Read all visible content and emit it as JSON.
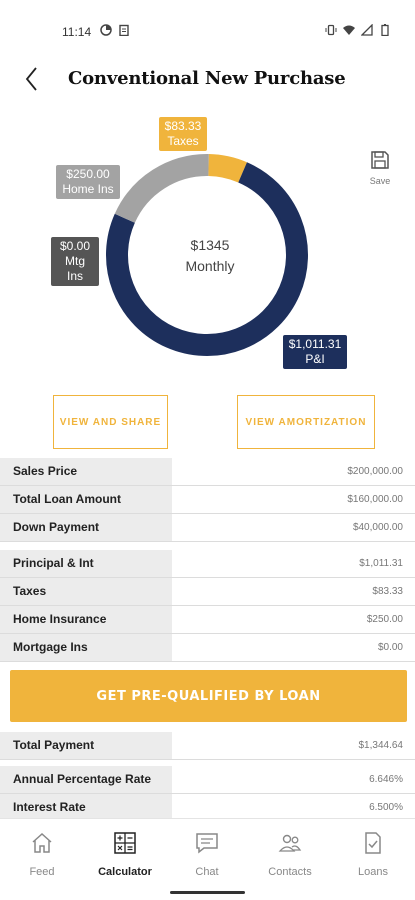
{
  "status_bar": {
    "time": "11:14"
  },
  "header": {
    "title": "Conventional New Purchase"
  },
  "chart_data": {
    "type": "pie",
    "categories": [
      "P&I",
      "Taxes",
      "Home Ins",
      "Mtg Ins"
    ],
    "values": [
      1011.31,
      83.33,
      250.0,
      0.0
    ],
    "labels": [
      "$1,011.31\nP&I",
      "$83.33\nTaxes",
      "$250.00\nHome Ins",
      "$0.00\nMtg Ins"
    ],
    "center_amount": "$1345",
    "center_label": "Monthly",
    "colors": {
      "pi": "#1d2f5c",
      "taxes": "#f0b43c",
      "home_ins": "#a3a3a3",
      "mtg_ins": "#555555"
    }
  },
  "callouts": {
    "taxes": {
      "amount": "$83.33",
      "label": "Taxes"
    },
    "home_ins": {
      "amount": "$250.00",
      "label": "Home Ins"
    },
    "mtg_ins": {
      "amount": "$0.00",
      "label": "Mtg Ins"
    },
    "pi": {
      "amount": "$1,011.31",
      "label": "P&I"
    }
  },
  "save": {
    "label": "Save",
    "icon": "save-icon"
  },
  "actions": {
    "share_label": "VIEW AND SHARE",
    "amort_label": "VIEW AMORTIZATION"
  },
  "loan_table": [
    {
      "label": "Sales Price",
      "value": "$200,000.00"
    },
    {
      "label": "Total Loan Amount",
      "value": "$160,000.00"
    },
    {
      "label": "Down Payment",
      "value": "$40,000.00"
    }
  ],
  "payment_table": [
    {
      "label": "Principal & Int",
      "value": "$1,011.31"
    },
    {
      "label": "Taxes",
      "value": "$83.33"
    },
    {
      "label": "Home Insurance",
      "value": "$250.00"
    },
    {
      "label": "Mortgage Ins",
      "value": "$0.00"
    }
  ],
  "cta": {
    "label": "GET PRE-QUALIFIED BY LOAN"
  },
  "total_table": [
    {
      "label": "Total Payment",
      "value": "$1,344.64"
    }
  ],
  "rate_table": [
    {
      "label": "Annual Percentage Rate",
      "value": "6.646%"
    },
    {
      "label": "Interest Rate",
      "value": "6.500%"
    }
  ],
  "tabs": [
    {
      "label": "Feed",
      "icon": "home-icon"
    },
    {
      "label": "Calculator",
      "icon": "calculator-icon"
    },
    {
      "label": "Chat",
      "icon": "chat-icon"
    },
    {
      "label": "Contacts",
      "icon": "contacts-icon"
    },
    {
      "label": "Loans",
      "icon": "loans-icon"
    }
  ],
  "active_tab": "Calculator"
}
